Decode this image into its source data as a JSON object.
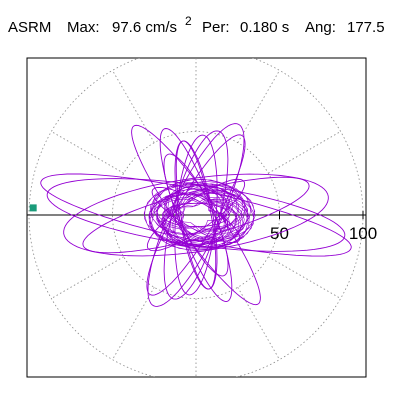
{
  "header": {
    "station": "ASRM",
    "max_label": "Max:",
    "max_value": "97.6 cm/s",
    "max_exp": "2",
    "per_label": "Per:",
    "per_value": "0.180 s",
    "ang_label": "Ang:",
    "ang_value": "177.5"
  },
  "colors": {
    "trace": "#9400d3",
    "marker": "#1a9b7a",
    "grid": "#888888",
    "axis": "#000000"
  },
  "chart_data": {
    "type": "line",
    "coordinate_system": "polar",
    "title": "ASRM Max: 97.6 cm/s2 Per: 0.180 s Ang: 177.5",
    "radial_ticks": [
      50,
      100
    ],
    "radial_range": [
      0,
      100
    ],
    "grid": true,
    "grid_rings": [
      50,
      100
    ],
    "grid_spokes_deg": [
      30,
      60,
      90,
      120,
      150,
      180,
      210,
      240,
      270,
      300,
      330
    ],
    "max_acceleration": 97.6,
    "max_angle_deg": 177.5,
    "ellipses_approx": [
      {
        "rx": 90,
        "ry": 18,
        "rot_deg": -8
      },
      {
        "rx": 95,
        "ry": 15,
        "rot_deg": -12
      },
      {
        "rx": 80,
        "ry": 22,
        "rot_deg": 8
      },
      {
        "rx": 70,
        "ry": 14,
        "rot_deg": 15
      },
      {
        "rx": 60,
        "ry": 15,
        "rot_deg": 65
      },
      {
        "rx": 55,
        "ry": 12,
        "rot_deg": 60
      },
      {
        "rx": 52,
        "ry": 14,
        "rot_deg": 75
      },
      {
        "rx": 48,
        "ry": 12,
        "rot_deg": 85
      },
      {
        "rx": 45,
        "ry": 10,
        "rot_deg": 100
      },
      {
        "rx": 40,
        "ry": 10,
        "rot_deg": 115
      },
      {
        "rx": 65,
        "ry": 12,
        "rot_deg": -55
      },
      {
        "rx": 55,
        "ry": 11,
        "rot_deg": -70
      },
      {
        "rx": 45,
        "ry": 9,
        "rot_deg": -80
      },
      {
        "rx": 35,
        "ry": 9,
        "rot_deg": 35
      },
      {
        "rx": 30,
        "ry": 8,
        "rot_deg": -30
      },
      {
        "rx": 20,
        "ry": 7,
        "rot_deg": 0
      }
    ],
    "max_point": {
      "r": 97.6,
      "angle_deg": 177.5
    }
  }
}
